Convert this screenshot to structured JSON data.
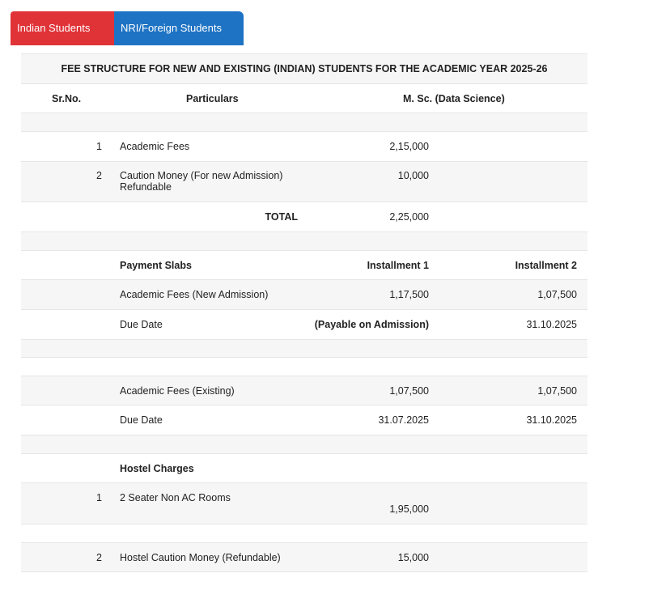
{
  "tabs": [
    {
      "label": "Indian Students",
      "color": "#e03338",
      "active": true
    },
    {
      "label": "NRI/Foreign Students",
      "color": "#1e73c4",
      "active": false
    }
  ],
  "table": {
    "title": "FEE STRUCTURE FOR NEW AND EXISTING (INDIAN) STUDENTS FOR THE ACADEMIC YEAR 2025-26",
    "headers": {
      "sr": "Sr.No.",
      "particulars": "Particulars",
      "course": "M. Sc. (Data Science)"
    },
    "fees": [
      {
        "sr": "1",
        "particular": "Academic Fees",
        "amount": "2,15,000"
      },
      {
        "sr": "2",
        "particular": "Caution Money (For new Admission) Refundable",
        "amount": "10,000"
      }
    ],
    "total": {
      "label": "TOTAL",
      "amount": "2,25,000"
    },
    "slabs": {
      "header": {
        "label": "Payment Slabs",
        "inst1": "Installment 1",
        "inst2": "Installment 2"
      },
      "new_admission": {
        "label": "Academic Fees (New Admission)",
        "inst1": "1,17,500",
        "inst2": "1,07,500"
      },
      "new_due": {
        "label": "Due Date",
        "inst1": "(Payable on Admission)",
        "inst2": "31.10.2025"
      },
      "existing": {
        "label": "Academic Fees (Existing)",
        "inst1": "1,07,500",
        "inst2": "1,07,500"
      },
      "existing_due": {
        "label": "Due Date",
        "inst1": "31.07.2025",
        "inst2": "31.10.2025"
      }
    },
    "hostel": {
      "header": "Hostel Charges",
      "items": [
        {
          "sr": "1",
          "label": "2 Seater Non AC Rooms",
          "amount": "1,95,000"
        },
        {
          "sr": "2",
          "label": "Hostel Caution Money (Refundable)",
          "amount": "15,000"
        }
      ]
    }
  }
}
